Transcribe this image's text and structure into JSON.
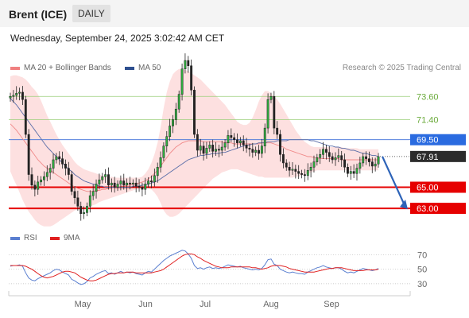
{
  "header": {
    "title": "Brent (ICE)",
    "timeframe": "DAILY"
  },
  "datetime": "Wednesday, September 24, 2025 3:02:42 AM CET",
  "legend": [
    {
      "label": "MA 20 + Bollinger Bands",
      "color": "#f08080"
    },
    {
      "label": "MA 50",
      "color": "#2e4f8f"
    }
  ],
  "credit": "Research © 2025 Trading Central",
  "rsi_legend": [
    {
      "label": "RSI",
      "color": "#5a7fd0"
    },
    {
      "label": "9MA",
      "color": "#e02020"
    }
  ],
  "chart_data": [
    {
      "type": "candlestick",
      "ylim": [
        61.5,
        75.2
      ],
      "x_labels": [
        "May",
        "Jun",
        "Jul",
        "Aug",
        "Sep"
      ],
      "levels": [
        {
          "value": 73.6,
          "label": "73.60",
          "kind": "resistance"
        },
        {
          "value": 71.4,
          "label": "71.40",
          "kind": "resistance"
        },
        {
          "value": 69.5,
          "label": "69.50",
          "kind": "pivot"
        },
        {
          "value": 67.91,
          "label": "67.91",
          "kind": "last"
        },
        {
          "value": 65.0,
          "label": "65.00",
          "kind": "support"
        },
        {
          "value": 63.0,
          "label": "63.00",
          "kind": "support"
        }
      ],
      "closes": [
        73.6,
        73.7,
        73.9,
        74.0,
        73.3,
        70.0,
        66.2,
        65.2,
        64.8,
        65.5,
        65.7,
        66.0,
        66.4,
        66.8,
        67.6,
        67.9,
        67.7,
        67.2,
        66.8,
        66.2,
        64.6,
        64.0,
        63.2,
        62.5,
        62.6,
        63.2,
        64.2,
        64.6,
        65.3,
        65.7,
        66.0,
        66.2,
        65.2,
        65.4,
        65.0,
        65.3,
        65.6,
        65.2,
        65.4,
        65.3,
        65.4,
        65.1,
        65.0,
        64.8,
        65.3,
        65.6,
        65.5,
        66.1,
        66.9,
        67.8,
        68.9,
        69.8,
        70.8,
        71.4,
        72.4,
        73.8,
        76.2,
        77.0,
        76.5,
        74.2,
        70.0,
        68.5,
        68.9,
        68.2,
        68.7,
        69.0,
        68.4,
        68.6,
        68.5,
        68.8,
        69.2,
        69.9,
        69.7,
        69.5,
        69.2,
        69.4,
        69.0,
        68.7,
        68.6,
        68.3,
        68.5,
        68.2,
        68.9,
        70.6,
        73.3,
        73.6,
        70.6,
        70.0,
        68.1,
        67.3,
        66.9,
        66.6,
        66.7,
        66.5,
        66.3,
        66.2,
        66.1,
        66.6,
        66.9,
        67.4,
        67.8,
        68.1,
        68.6,
        68.3,
        67.9,
        67.6,
        67.8,
        68.0,
        67.6,
        66.9,
        66.3,
        66.5,
        66.3,
        66.8,
        67.3,
        67.9,
        67.7,
        67.4,
        67.0,
        67.2,
        67.9
      ],
      "bb_center": [
        71.0,
        70.7,
        70.4,
        70.0,
        69.6,
        69.2,
        68.8,
        68.4,
        68.0,
        67.6,
        67.3,
        67.0,
        66.8,
        66.6,
        66.4,
        66.2,
        66.0,
        65.8,
        65.6,
        65.4,
        65.2,
        65.0,
        64.9,
        64.8,
        64.7,
        64.6,
        64.6,
        64.6,
        64.7,
        64.7,
        64.8,
        64.8,
        64.9,
        64.9,
        65.0,
        65.0,
        65.1,
        65.1,
        65.2,
        65.2,
        65.3,
        65.3,
        65.4,
        65.5,
        65.6,
        65.8,
        66.0,
        66.3,
        66.6,
        67.0,
        67.4,
        67.8,
        68.2,
        68.5,
        68.8,
        69.0,
        69.2,
        69.3,
        69.4,
        69.4,
        69.4,
        69.4,
        69.4,
        69.3,
        69.3,
        69.3,
        69.3,
        69.3,
        69.3,
        69.3,
        69.2,
        69.2,
        69.2,
        69.1,
        69.1,
        69.1,
        69.1,
        69.1,
        69.1,
        69.1,
        69.1,
        69.1,
        69.2,
        69.2,
        69.2,
        69.2,
        69.1,
        69.0,
        68.9,
        68.8,
        68.6,
        68.5,
        68.4,
        68.3,
        68.2,
        68.1,
        68.0,
        67.9,
        67.9,
        67.8,
        67.8,
        67.7,
        67.7,
        67.7,
        67.7,
        67.7,
        67.7,
        67.7,
        67.6,
        67.6,
        67.6,
        67.6,
        67.6,
        67.6,
        67.6,
        67.6,
        67.6,
        67.6,
        67.6,
        67.6,
        67.6
      ],
      "bb_upper": [
        75.5,
        75.6,
        75.6,
        75.5,
        75.4,
        75.2,
        74.9,
        74.5,
        74.2,
        73.8,
        73.2,
        72.5,
        71.8,
        71.2,
        70.6,
        70.0,
        69.5,
        69.0,
        68.6,
        68.2,
        67.8,
        67.4,
        67.1,
        66.9,
        66.7,
        66.6,
        66.5,
        66.4,
        66.3,
        66.2,
        66.1,
        66.0,
        66.0,
        66.0,
        65.9,
        65.9,
        65.9,
        65.9,
        65.9,
        65.9,
        65.9,
        65.9,
        65.9,
        66.0,
        66.3,
        66.7,
        67.3,
        68.1,
        69.2,
        70.7,
        72.5,
        74.0,
        75.0,
        75.7,
        76.0,
        76.2,
        76.2,
        76.1,
        76.0,
        75.8,
        75.6,
        75.4,
        75.2,
        74.9,
        74.6,
        74.3,
        74.0,
        73.7,
        73.4,
        73.1,
        72.8,
        72.4,
        72.0,
        71.6,
        71.2,
        71.0,
        70.9,
        70.9,
        71.1,
        71.6,
        72.3,
        73.1,
        73.7,
        74.1,
        74.1,
        73.9,
        73.6,
        73.3,
        72.9,
        72.4,
        71.9,
        71.4,
        70.9,
        70.4,
        70.0,
        69.6,
        69.3,
        69.1,
        68.9,
        68.8,
        68.8,
        68.8,
        68.8,
        68.8,
        68.8,
        68.8,
        68.8,
        68.8,
        68.8,
        68.7,
        68.7,
        68.7,
        68.7,
        68.7,
        68.6,
        68.6,
        68.6,
        68.6,
        68.6,
        68.6,
        68.6
      ],
      "bb_lower": [
        66.5,
        65.8,
        65.2,
        64.5,
        63.8,
        63.2,
        62.7,
        62.3,
        61.9,
        61.6,
        61.4,
        61.3,
        61.3,
        61.3,
        61.4,
        61.6,
        61.8,
        62.0,
        62.2,
        62.4,
        62.6,
        62.8,
        62.9,
        63.0,
        63.0,
        63.1,
        63.2,
        63.3,
        63.4,
        63.6,
        63.7,
        63.8,
        63.9,
        64.0,
        64.1,
        64.2,
        64.3,
        64.4,
        64.5,
        64.6,
        64.7,
        64.8,
        64.9,
        65.0,
        65.0,
        64.9,
        64.8,
        64.5,
        64.1,
        63.5,
        62.8,
        62.4,
        62.2,
        62.2,
        62.3,
        62.5,
        62.8,
        63.1,
        63.4,
        63.7,
        64.0,
        64.3,
        64.6,
        64.9,
        65.2,
        65.5,
        65.8,
        66.0,
        66.2,
        66.4,
        66.5,
        66.6,
        66.7,
        66.7,
        66.7,
        66.6,
        66.5,
        66.4,
        66.3,
        66.2,
        66.1,
        66.0,
        66.0,
        65.9,
        65.9,
        65.9,
        65.9,
        65.9,
        65.9,
        65.9,
        65.9,
        65.9,
        65.9,
        66.0,
        66.0,
        66.1,
        66.2,
        66.3,
        66.4,
        66.5,
        66.6,
        66.6,
        66.6,
        66.6,
        66.6,
        66.6,
        66.6,
        66.6,
        66.6,
        66.6,
        66.6,
        66.6,
        66.6,
        66.6,
        66.6,
        66.6,
        66.6,
        66.6,
        66.6,
        66.6,
        66.6
      ],
      "ma50": [
        73.4,
        73.1,
        72.8,
        72.4,
        72.0,
        71.6,
        71.2,
        70.8,
        70.4,
        70.0,
        69.6,
        69.2,
        68.8,
        68.5,
        68.2,
        67.9,
        67.6,
        67.3,
        67.0,
        66.7,
        66.5,
        66.2,
        66.0,
        65.8,
        65.6,
        65.5,
        65.4,
        65.3,
        65.2,
        65.1,
        65.1,
        65.0,
        65.0,
        65.0,
        65.0,
        65.0,
        65.0,
        65.0,
        65.0,
        65.0,
        65.1,
        65.1,
        65.1,
        65.2,
        65.2,
        65.3,
        65.4,
        65.5,
        65.6,
        65.8,
        66.0,
        66.2,
        66.4,
        66.6,
        66.8,
        67.0,
        67.2,
        67.4,
        67.6,
        67.7,
        67.8,
        67.9,
        68.0,
        68.0,
        68.1,
        68.1,
        68.2,
        68.2,
        68.2,
        68.3,
        68.3,
        68.4,
        68.5,
        68.6,
        68.7,
        68.8,
        68.9,
        69.0,
        69.0,
        69.1,
        69.1,
        69.2,
        69.2,
        69.2,
        69.3,
        69.3,
        69.3,
        69.4,
        69.4,
        69.4,
        69.4,
        69.5,
        69.5,
        69.5,
        69.5,
        69.5,
        69.5,
        69.5,
        69.4,
        69.4,
        69.3,
        69.2,
        69.1,
        69.0,
        68.9,
        68.9,
        68.8,
        68.8,
        68.7,
        68.7,
        68.6,
        68.5,
        68.5,
        68.4,
        68.3,
        68.2,
        68.2,
        68.1,
        68.0,
        68.0,
        67.9
      ],
      "projection": {
        "from": 67.91,
        "to": 63.0
      }
    },
    {
      "type": "line",
      "name": "RSI",
      "ylim": [
        20,
        78
      ],
      "ticks": [
        {
          "value": 70,
          "label": "70"
        },
        {
          "value": 50,
          "label": "50"
        },
        {
          "value": 30,
          "label": "30"
        }
      ],
      "series": [
        {
          "name": "RSI",
          "values": [
            54,
            55,
            55,
            56,
            54,
            45,
            38,
            35,
            34,
            37,
            39,
            41,
            43,
            45,
            48,
            50,
            49,
            46,
            44,
            42,
            36,
            34,
            31,
            29,
            30,
            33,
            38,
            40,
            43,
            45,
            47,
            48,
            44,
            45,
            43,
            45,
            47,
            45,
            46,
            45,
            46,
            44,
            43,
            42,
            45,
            47,
            46,
            50,
            54,
            58,
            62,
            65,
            68,
            70,
            72,
            74,
            76,
            75,
            71,
            65,
            55,
            51,
            52,
            50,
            52,
            53,
            51,
            52,
            51,
            52,
            54,
            56,
            55,
            54,
            53,
            54,
            52,
            51,
            50,
            49,
            50,
            49,
            51,
            56,
            63,
            64,
            57,
            55,
            50,
            48,
            46,
            45,
            46,
            45,
            44,
            44,
            43,
            46,
            48,
            50,
            52,
            53,
            55,
            53,
            52,
            51,
            52,
            52,
            50,
            47,
            45,
            46,
            45,
            47,
            49,
            51,
            50,
            49,
            48,
            49,
            51
          ]
        },
        {
          "name": "9MA",
          "values": [
            55,
            55,
            55,
            55,
            55,
            54,
            52,
            50,
            47,
            44,
            41,
            39,
            38,
            39,
            40,
            42,
            44,
            46,
            47,
            47,
            46,
            45,
            42,
            39,
            37,
            35,
            34,
            34,
            35,
            37,
            39,
            41,
            43,
            44,
            44,
            45,
            45,
            45,
            46,
            46,
            46,
            45,
            45,
            45,
            45,
            45,
            45,
            46,
            47,
            48,
            50,
            53,
            56,
            59,
            62,
            65,
            68,
            70,
            71,
            71,
            70,
            67,
            65,
            62,
            60,
            58,
            56,
            54,
            53,
            52,
            52,
            52,
            53,
            53,
            53,
            53,
            53,
            53,
            53,
            52,
            52,
            51,
            50,
            51,
            52,
            54,
            55,
            55,
            55,
            54,
            53,
            51,
            50,
            49,
            48,
            47,
            46,
            46,
            46,
            46,
            47,
            48,
            49,
            50,
            51,
            51,
            52,
            52,
            52,
            51,
            50,
            49,
            48,
            48,
            48,
            48,
            49,
            49,
            49,
            49,
            50
          ]
        }
      ]
    }
  ]
}
